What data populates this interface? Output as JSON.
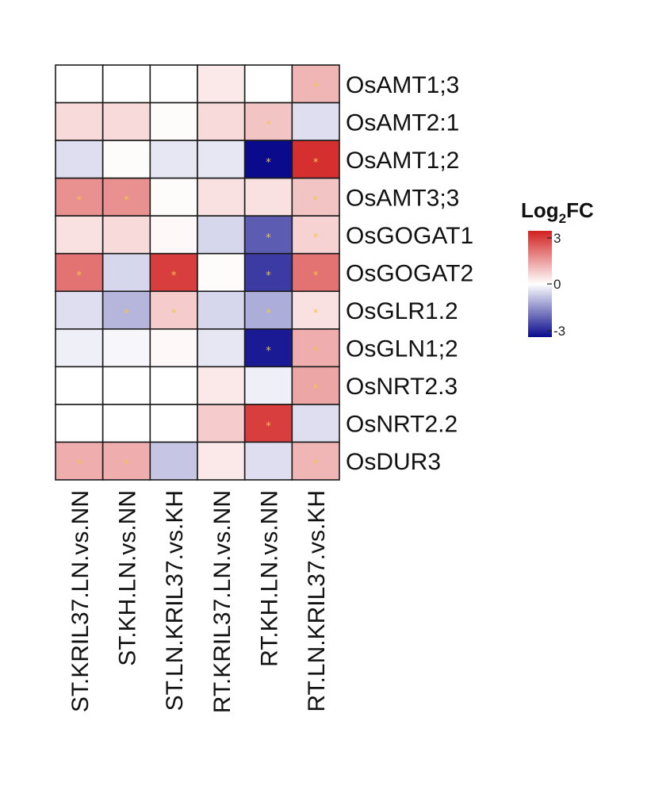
{
  "chart_data": {
    "type": "heatmap",
    "rows": [
      "OsAMT1;3",
      "OsAMT2:1",
      "OsAMT1;2",
      "OsAMT3;3",
      "OsGOGAT1",
      "OsGOGAT2",
      "OsGLR1.2",
      "OsGLN1;2",
      "OsNRT2.3",
      "OsNRT2.2",
      "OsDUR3"
    ],
    "columns": [
      "ST.KRIL37.LN.vs.NN",
      "ST.KH.LN.vs.NN",
      "ST.LN.KRIL37.vs.KH",
      "RT.KRIL37.LN.vs.NN",
      "RT.KH.LN.vs.NN",
      "RT.LN.KRIL37.vs.KH"
    ],
    "values": [
      [
        0,
        0,
        0,
        0.3,
        0,
        1.0
      ],
      [
        0.5,
        0.5,
        0.05,
        0.5,
        0.8,
        -0.4
      ],
      [
        -0.4,
        0.05,
        -0.3,
        -0.3,
        -3.0,
        2.8
      ],
      [
        1.5,
        1.5,
        0.05,
        0.4,
        0.4,
        0.8
      ],
      [
        0.4,
        0.5,
        0.1,
        -0.5,
        -2.0,
        0.6
      ],
      [
        1.9,
        -0.5,
        2.6,
        0.05,
        -2.4,
        1.9
      ],
      [
        -0.4,
        -0.9,
        0.7,
        -0.5,
        -1.0,
        0.4
      ],
      [
        -0.2,
        -0.1,
        0.1,
        -0.3,
        -2.8,
        1.1
      ],
      [
        0,
        0,
        0,
        0.3,
        -0.2,
        1.2
      ],
      [
        0,
        0,
        0,
        0.7,
        2.6,
        -0.4
      ],
      [
        1.1,
        1.1,
        -0.7,
        0.3,
        -0.4,
        1.0
      ]
    ],
    "significant": [
      [
        false,
        false,
        false,
        false,
        false,
        true
      ],
      [
        false,
        false,
        false,
        false,
        true,
        false
      ],
      [
        false,
        false,
        false,
        false,
        true,
        true
      ],
      [
        true,
        true,
        false,
        false,
        false,
        true
      ],
      [
        false,
        false,
        false,
        false,
        true,
        true
      ],
      [
        true,
        false,
        true,
        false,
        true,
        true
      ],
      [
        false,
        true,
        true,
        false,
        true,
        true
      ],
      [
        false,
        false,
        false,
        false,
        true,
        true
      ],
      [
        false,
        false,
        false,
        false,
        false,
        true
      ],
      [
        false,
        false,
        false,
        false,
        true,
        false
      ],
      [
        true,
        true,
        false,
        false,
        false,
        true
      ]
    ],
    "significance_mark": "*",
    "legend": {
      "title": "Log",
      "title_subscript": "2",
      "title_suffix": "FC",
      "min": -3,
      "max": 3,
      "ticks": [
        "3",
        "0",
        "-3"
      ],
      "placement": "right"
    },
    "color_scale": {
      "low": "#0a0a8c",
      "mid": "#ffffff",
      "high": "#d22020"
    },
    "grid": true
  }
}
